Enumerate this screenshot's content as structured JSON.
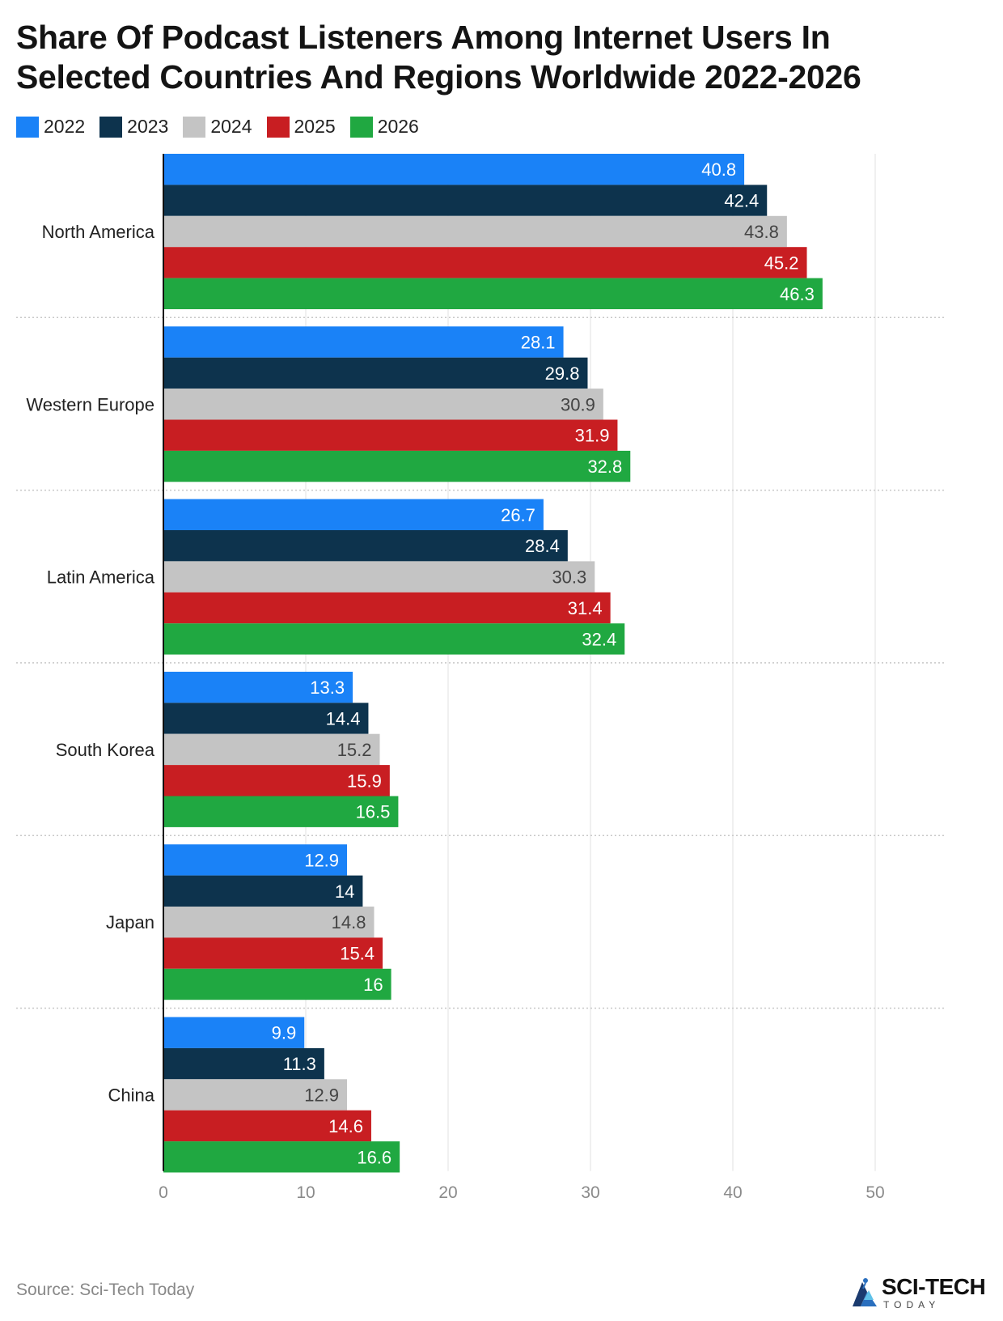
{
  "chart_data": {
    "type": "bar",
    "orientation": "horizontal",
    "title": "Share Of Podcast Listeners Among Internet Users In Selected Countries And Regions Worldwide 2022-2026",
    "categories": [
      "North America",
      "Western Europe",
      "Latin America",
      "South Korea",
      "Japan",
      "China"
    ],
    "series": [
      {
        "name": "2022",
        "color": "#1a82f7",
        "label_color": "#ffffff",
        "values": [
          40.8,
          28.1,
          26.7,
          13.3,
          12.9,
          9.9
        ]
      },
      {
        "name": "2023",
        "color": "#0d334d",
        "label_color": "#ffffff",
        "values": [
          42.4,
          29.8,
          28.4,
          14.4,
          14,
          11.3
        ]
      },
      {
        "name": "2024",
        "color": "#c4c4c4",
        "label_color": "#444444",
        "values": [
          43.8,
          30.9,
          30.3,
          15.2,
          14.8,
          12.9
        ]
      },
      {
        "name": "2025",
        "color": "#c81e22",
        "label_color": "#ffffff",
        "values": [
          45.2,
          31.9,
          31.4,
          15.9,
          15.4,
          14.6
        ]
      },
      {
        "name": "2026",
        "color": "#20a841",
        "label_color": "#ffffff",
        "values": [
          46.3,
          32.8,
          32.4,
          16.5,
          16,
          16.6
        ]
      }
    ],
    "xlim": [
      0,
      50
    ],
    "xticks": [
      0,
      10,
      20,
      30,
      40,
      50
    ],
    "xlabel": "",
    "ylabel": "",
    "grid": true,
    "legend_position": "top-left"
  },
  "source_text": "Source: Sci-Tech Today",
  "logo": {
    "name": "SCI-TECH",
    "sub": "TODAY",
    "icon": "sci-tech-logo-icon"
  }
}
